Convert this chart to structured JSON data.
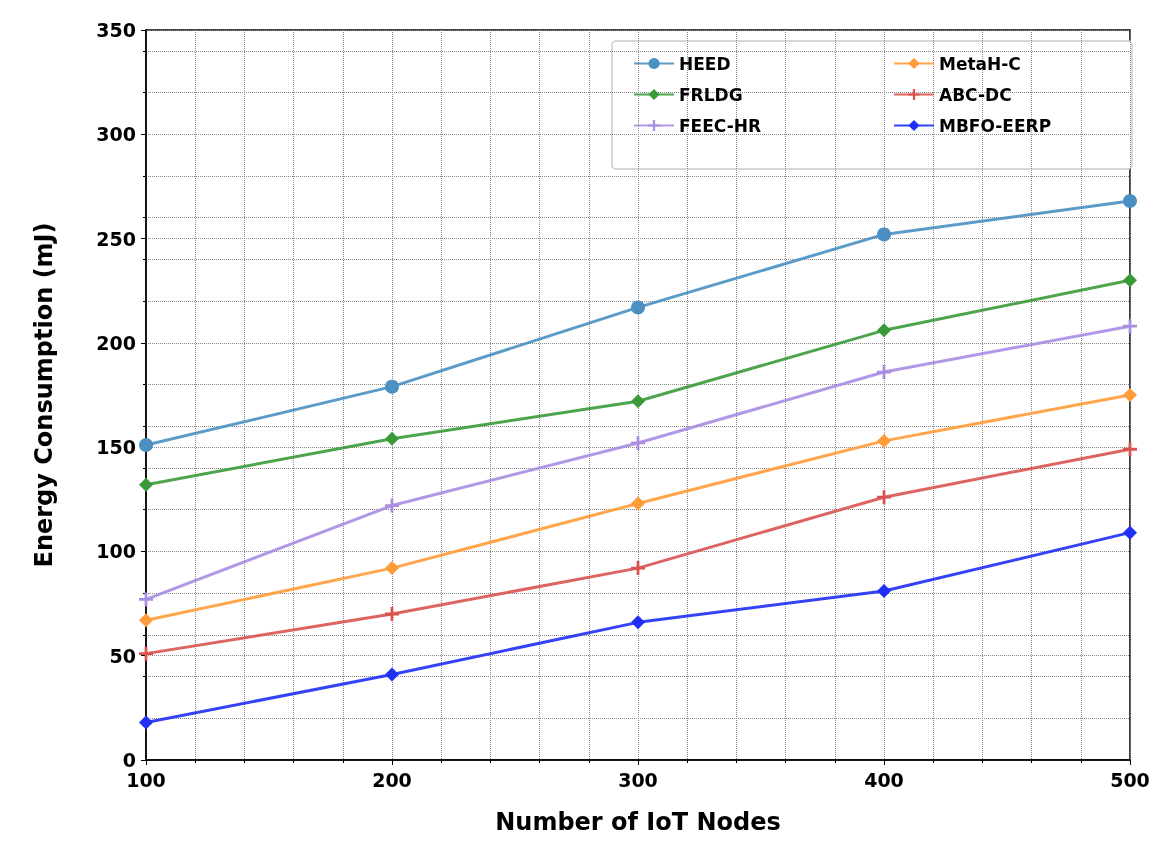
{
  "chart_data": {
    "type": "line",
    "xlabel": "Number of IoT Nodes",
    "ylabel": "Energy Consumption (mJ)",
    "x": [
      100,
      200,
      300,
      400,
      500
    ],
    "series": [
      {
        "name": "HEED",
        "color": "#4a90c2",
        "marker": "circle",
        "values": [
          151,
          179,
          217,
          252,
          268
        ]
      },
      {
        "name": "FRLDG",
        "color": "#3a9a3a",
        "marker": "diamond",
        "values": [
          132,
          154,
          172,
          206,
          230
        ]
      },
      {
        "name": "FEEC-HR",
        "color": "#a98de3",
        "marker": "cross",
        "values": [
          77,
          122,
          152,
          186,
          208
        ]
      },
      {
        "name": "MetaH-C",
        "color": "#ff9c3a",
        "marker": "diamond",
        "values": [
          67,
          92,
          123,
          153,
          175
        ]
      },
      {
        "name": "ABC-DC",
        "color": "#d9534f",
        "marker": "cross",
        "values": [
          51,
          70,
          92,
          126,
          149
        ]
      },
      {
        "name": "MBFO-EERP",
        "color": "#1f2ff5",
        "marker": "diamond",
        "values": [
          18,
          41,
          66,
          81,
          109
        ]
      }
    ],
    "xlim": [
      100,
      500
    ],
    "xticks": [
      100,
      200,
      300,
      400,
      500
    ],
    "ylim": [
      0,
      350
    ],
    "yticks": [
      0,
      50,
      100,
      150,
      200,
      250,
      300,
      350
    ],
    "grid": true,
    "legend": "top right",
    "line_style": "solid"
  }
}
